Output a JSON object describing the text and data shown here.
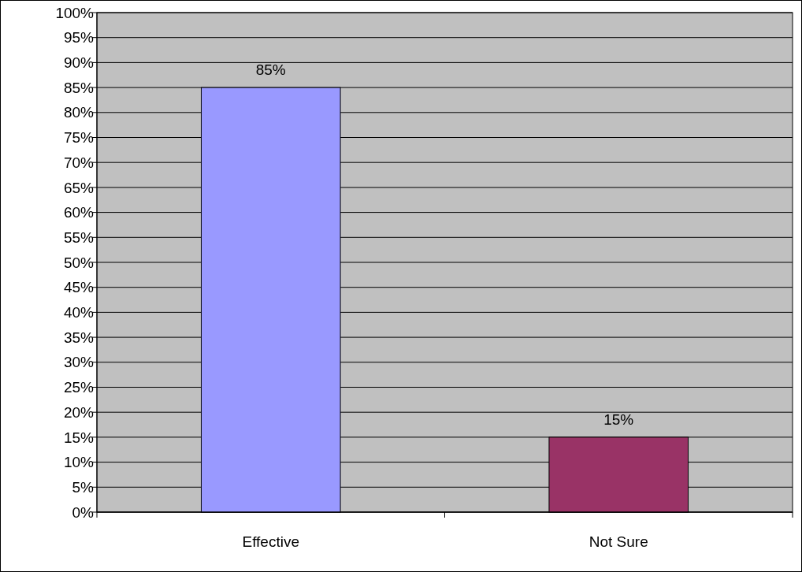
{
  "chart_data": {
    "type": "bar",
    "categories": [
      "Effective",
      "Not Sure"
    ],
    "values": [
      85,
      15
    ],
    "colors": [
      "#9999ff",
      "#993366"
    ],
    "value_labels": [
      "85%",
      "15%"
    ],
    "ylim": [
      0,
      100
    ],
    "yticks": [
      {
        "value": 0,
        "label": "0%"
      },
      {
        "value": 5,
        "label": "5%"
      },
      {
        "value": 10,
        "label": "10%"
      },
      {
        "value": 15,
        "label": "15%"
      },
      {
        "value": 20,
        "label": "20%"
      },
      {
        "value": 25,
        "label": "25%"
      },
      {
        "value": 30,
        "label": "30%"
      },
      {
        "value": 35,
        "label": "35%"
      },
      {
        "value": 40,
        "label": "40%"
      },
      {
        "value": 45,
        "label": "45%"
      },
      {
        "value": 50,
        "label": "50%"
      },
      {
        "value": 55,
        "label": "55%"
      },
      {
        "value": 60,
        "label": "60%"
      },
      {
        "value": 65,
        "label": "65%"
      },
      {
        "value": 70,
        "label": "70%"
      },
      {
        "value": 75,
        "label": "75%"
      },
      {
        "value": 80,
        "label": "80%"
      },
      {
        "value": 85,
        "label": "85%"
      },
      {
        "value": 90,
        "label": "90%"
      },
      {
        "value": 95,
        "label": "95%"
      },
      {
        "value": 100,
        "label": "100%"
      }
    ],
    "grid": "y"
  }
}
